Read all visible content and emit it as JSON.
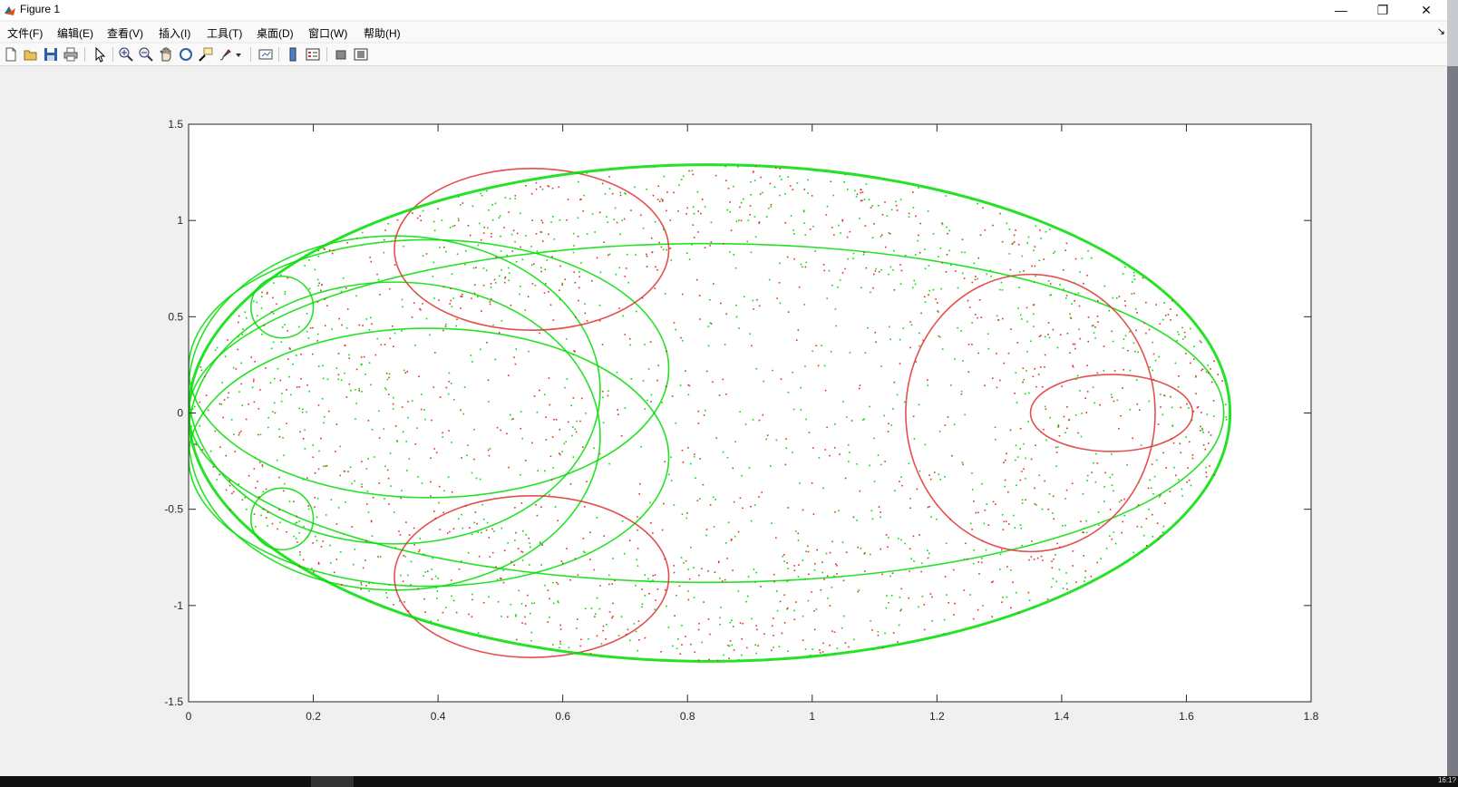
{
  "window": {
    "title": "Figure 1",
    "minimize_glyph": "—",
    "restore_glyph": "❐",
    "close_glyph": "✕"
  },
  "menu": {
    "items": [
      "文件(F)",
      "编辑(E)",
      "查看(V)",
      "插入(I)",
      "工具(T)",
      "桌面(D)",
      "窗口(W)",
      "帮助(H)"
    ],
    "overflow_glyph": "↘"
  },
  "toolbar": {
    "icons": [
      "new-figure-icon",
      "open-file-icon",
      "save-icon",
      "print-icon",
      "select-arrow-icon",
      "zoom-in-icon",
      "zoom-out-icon",
      "pan-hand-icon",
      "rotate-3d-icon",
      "data-cursor-icon",
      "brush-icon",
      "brush-dropdown-icon",
      "link-plot-icon",
      "colorbar-icon",
      "legend-icon",
      "hide-plot-tools-icon",
      "show-plot-tools-icon"
    ]
  },
  "colors": {
    "series_a": "#00dd00",
    "series_b": "#e03030",
    "axes_background": "#ffffff",
    "figure_background": "#f0f0f0"
  },
  "chart_data": {
    "type": "scatter",
    "title": "",
    "xlabel": "",
    "ylabel": "",
    "xlim": [
      0,
      1.8
    ],
    "ylim": [
      -1.5,
      1.5
    ],
    "xticks": [
      0,
      0.2,
      0.4,
      0.6,
      0.8,
      1,
      1.2,
      1.4,
      1.6,
      1.8
    ],
    "xtick_labels": [
      "0",
      "0.2",
      "0.4",
      "0.6",
      "0.8",
      "1",
      "1.2",
      "1.4",
      "1.6",
      "1.8"
    ],
    "yticks": [
      -1.5,
      -1,
      -0.5,
      0,
      0.5,
      1,
      1.5
    ],
    "ytick_labels": [
      "-1.5",
      "-1",
      "-0.5",
      "0",
      "0.5",
      "1",
      "1.5"
    ],
    "grid": false,
    "legend": "none",
    "boundary_ellipse": {
      "cx": 0.835,
      "cy": 0,
      "rx": 0.835,
      "ry": 1.29
    },
    "curves": [
      {
        "name": "",
        "kind": "ellipse",
        "cx": 0.83,
        "cy": 0,
        "rx": 0.83,
        "ry": 0.88,
        "color": "series_a"
      },
      {
        "name": "",
        "kind": "ellipse",
        "cx": 0.385,
        "cy": 0.23,
        "rx": 0.385,
        "ry": 0.67,
        "color": "series_a"
      },
      {
        "name": "",
        "kind": "ellipse",
        "cx": 0.385,
        "cy": -0.23,
        "rx": 0.385,
        "ry": 0.67,
        "color": "series_a"
      },
      {
        "name": "",
        "kind": "ellipse",
        "cx": 0.33,
        "cy": 0.12,
        "rx": 0.33,
        "ry": 0.8,
        "color": "series_a"
      },
      {
        "name": "",
        "kind": "ellipse",
        "cx": 0.33,
        "cy": -0.12,
        "rx": 0.33,
        "ry": 0.8,
        "color": "series_a"
      },
      {
        "name": "",
        "kind": "ellipse",
        "cx": 1.35,
        "cy": 0,
        "rx": 0.2,
        "ry": 0.72,
        "color": "series_b"
      },
      {
        "name": "",
        "kind": "ellipse",
        "cx": 0.55,
        "cy": 0.85,
        "rx": 0.22,
        "ry": 0.42,
        "color": "series_b"
      },
      {
        "name": "",
        "kind": "ellipse",
        "cx": 0.55,
        "cy": -0.85,
        "rx": 0.22,
        "ry": 0.42,
        "color": "series_b"
      },
      {
        "name": "",
        "kind": "ellipse",
        "cx": 0.15,
        "cy": 0.55,
        "rx": 0.05,
        "ry": 0.16,
        "color": "series_a"
      },
      {
        "name": "",
        "kind": "ellipse",
        "cx": 0.15,
        "cy": -0.55,
        "rx": 0.05,
        "ry": 0.16,
        "color": "series_a"
      },
      {
        "name": "",
        "kind": "ellipse",
        "cx": 1.48,
        "cy": 0,
        "rx": 0.13,
        "ry": 0.2,
        "color": "series_b"
      }
    ],
    "scatter_density": {
      "points_per_series": 1400
    }
  },
  "taskbar": {
    "time": "16:1?"
  }
}
